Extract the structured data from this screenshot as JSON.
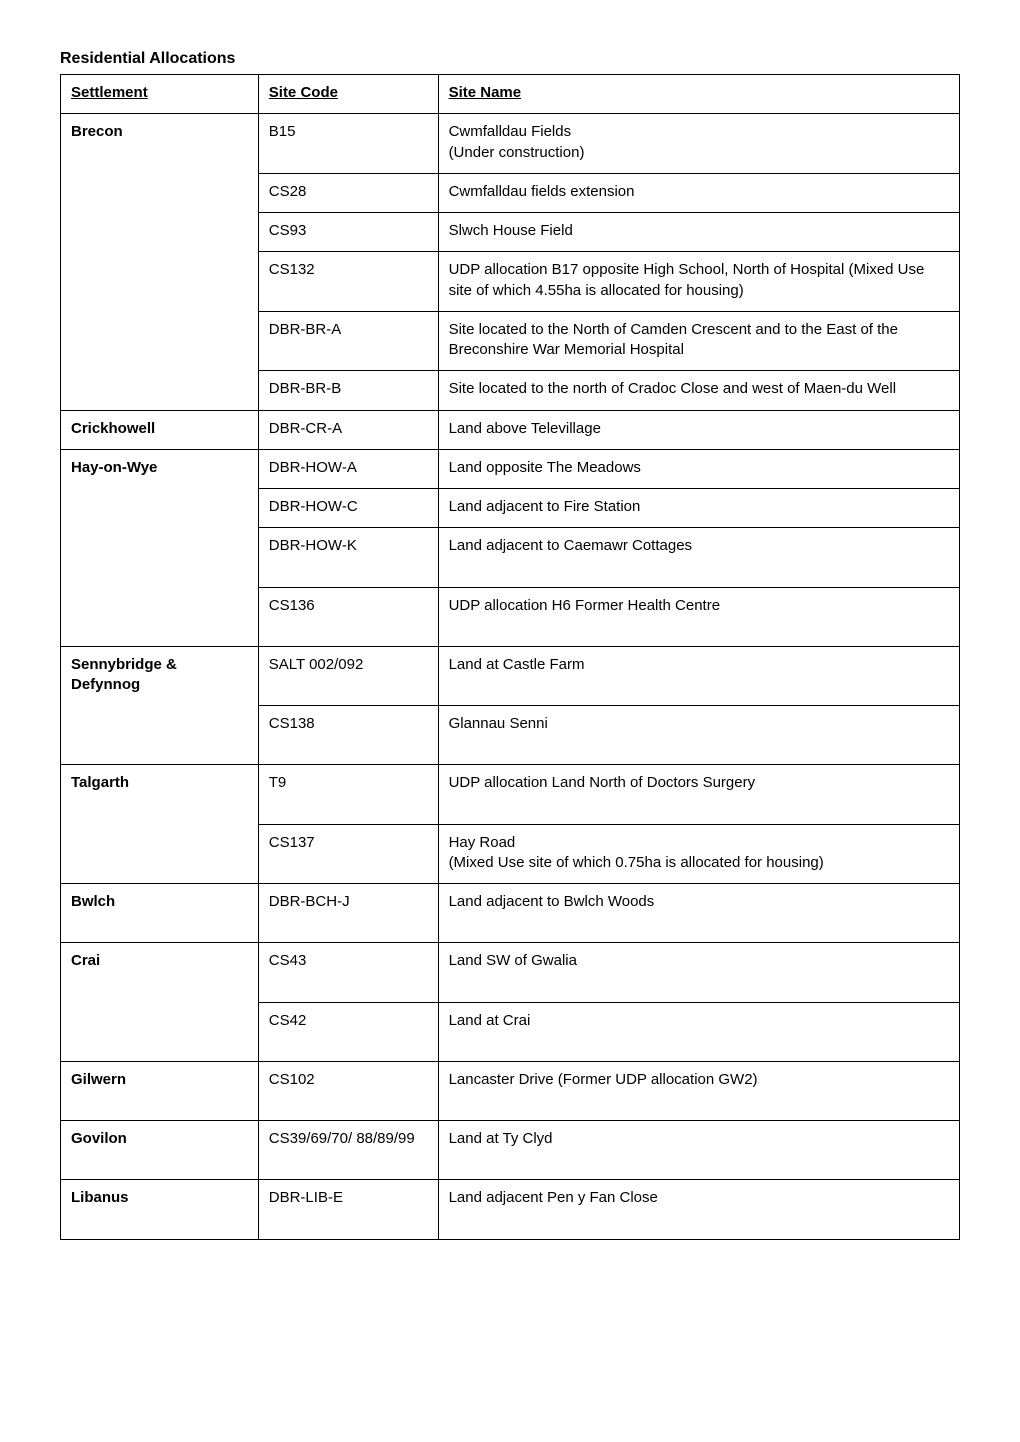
{
  "title": "Residential Allocations",
  "columns": [
    "Settlement",
    "Site Code",
    "Site Name"
  ],
  "table_style": {
    "border_color": "#000000",
    "background_color": "#ffffff",
    "font_family": "Arial",
    "header_fontsize": 15,
    "cell_fontsize": 15,
    "col_widths_pct": [
      22,
      20,
      58
    ]
  },
  "rows": [
    {
      "settlement": "Brecon",
      "settlement_rowspan": 6,
      "code": "B15",
      "name_lines": [
        "Cwmfalldau Fields",
        "(Under construction)"
      ]
    },
    {
      "code": "CS28",
      "name_lines": [
        "Cwmfalldau fields extension"
      ]
    },
    {
      "code": "CS93",
      "name_lines": [
        "Slwch House Field"
      ]
    },
    {
      "code": "CS132",
      "name_lines": [
        "UDP allocation B17 opposite High School, North of Hospital (Mixed Use site of which 4.55ha is allocated for housing)"
      ]
    },
    {
      "code": "DBR-BR-A",
      "name_lines": [
        "Site located to the North of Camden Crescent and to the East of the Breconshire War Memorial Hospital"
      ]
    },
    {
      "code": "DBR-BR-B",
      "name_lines": [
        "Site located to the north of Cradoc Close and west of Maen-du Well"
      ]
    },
    {
      "settlement": "Crickhowell",
      "settlement_rowspan": 1,
      "code": "DBR-CR-A",
      "name_lines": [
        "Land above Televillage"
      ]
    },
    {
      "settlement": "Hay-on-Wye",
      "settlement_rowspan": 4,
      "code": "DBR-HOW-A",
      "name_lines": [
        "Land opposite The Meadows"
      ]
    },
    {
      "code": "DBR-HOW-C",
      "name_lines": [
        "Land adjacent to Fire Station"
      ]
    },
    {
      "code": "DBR-HOW-K",
      "name_lines": [
        "Land adjacent to Caemawr Cottages"
      ],
      "tall": true
    },
    {
      "code": "CS136",
      "name_lines": [
        "UDP allocation H6 Former Health Centre"
      ],
      "tall": true
    },
    {
      "settlement": "Sennybridge & Defynnog",
      "settlement_rowspan": 2,
      "code": "SALT 002/092",
      "name_lines": [
        "Land at Castle Farm"
      ],
      "tall": true
    },
    {
      "code": "CS138",
      "name_lines": [
        "Glannau Senni"
      ],
      "tall": true
    },
    {
      "settlement": "Talgarth",
      "settlement_rowspan": 2,
      "code": "T9",
      "name_lines": [
        "UDP allocation Land North of Doctors Surgery"
      ],
      "tall": true
    },
    {
      "code": "CS137",
      "name_lines": [
        "Hay Road",
        "(Mixed Use site of which 0.75ha is allocated for housing)"
      ]
    },
    {
      "settlement": "Bwlch",
      "settlement_rowspan": 1,
      "code": "DBR-BCH-J",
      "name_lines": [
        "Land adjacent to Bwlch Woods"
      ],
      "tall": true
    },
    {
      "settlement": "Crai",
      "settlement_rowspan": 2,
      "code": "CS43",
      "name_lines": [
        "Land SW of Gwalia"
      ],
      "tall": true
    },
    {
      "code": "CS42",
      "name_lines": [
        "Land at Crai"
      ],
      "tall": true
    },
    {
      "settlement": "Gilwern",
      "settlement_rowspan": 1,
      "code": "CS102",
      "name_lines": [
        "Lancaster Drive (Former UDP allocation GW2)"
      ],
      "tall": true
    },
    {
      "settlement": "Govilon",
      "settlement_rowspan": 1,
      "code": "CS39/69/70/ 88/89/99",
      "name_lines": [
        "Land at Ty Clyd"
      ],
      "tall": true
    },
    {
      "settlement": "Libanus",
      "settlement_rowspan": 1,
      "code": "DBR-LIB-E",
      "name_lines": [
        "Land adjacent Pen y Fan Close"
      ],
      "tall": true
    }
  ]
}
